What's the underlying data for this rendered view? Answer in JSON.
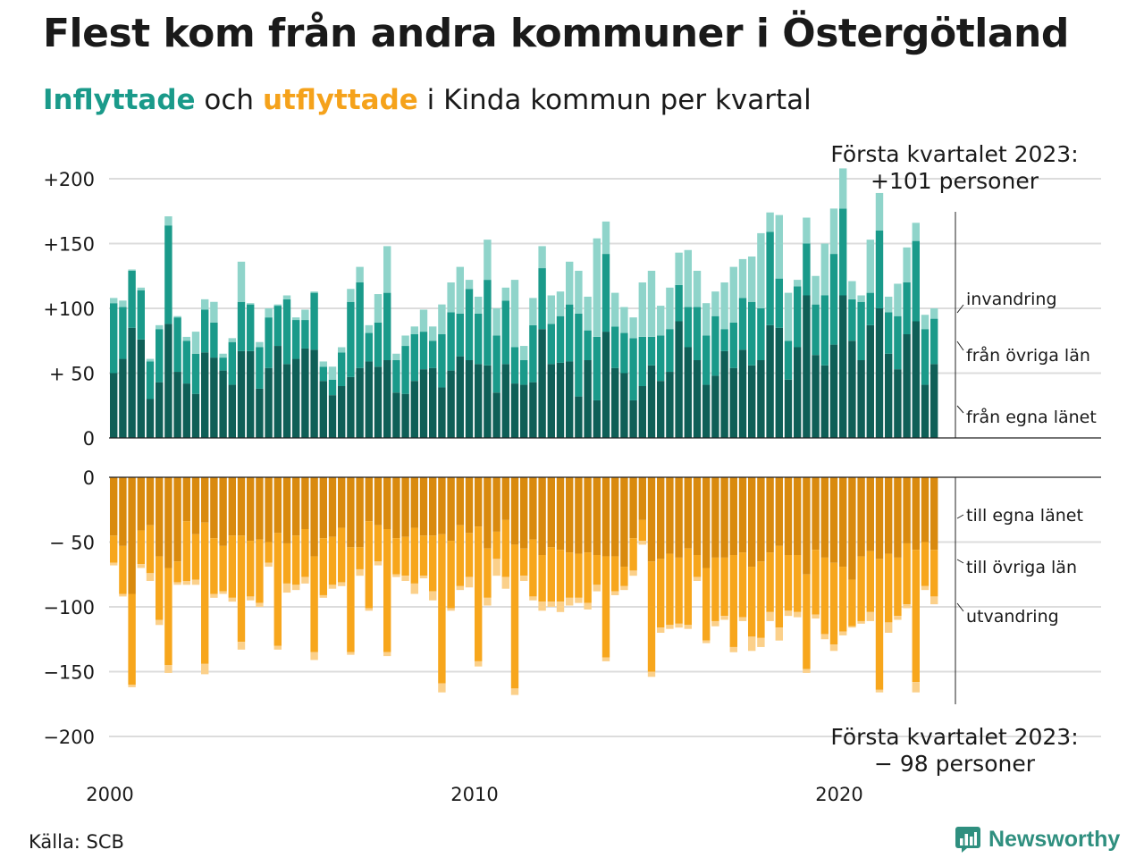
{
  "title": "Flest kom från andra kommuner i Östergötland",
  "subtitle": {
    "part1": "Inflyttade",
    "part2": " och ",
    "part3": "utflyttade",
    "part4": " i Kinda kommun per kvartal"
  },
  "annotation_top": [
    "Första kvartalet 2023:",
    "+101 personer"
  ],
  "annotation_bottom": [
    "Första kvartalet 2023:",
    "− 98 personer"
  ],
  "source": "Källa: SCB",
  "brand": "Newsworthy",
  "colors": {
    "egna_in": "#0f5f57",
    "ovriga_in": "#1a9a8a",
    "invandring": "#8fd4ca",
    "egna_out": "#d98a0e",
    "ovriga_out": "#f7a61c",
    "utvandring": "#fbd08a",
    "subtitle_in": "#1a9a8a",
    "subtitle_out": "#f5a21b"
  },
  "chart_data": {
    "type": "bar",
    "stacked": true,
    "x_start": "2000 Q1",
    "x_end": "2023 Q1",
    "xticks": [
      "2000",
      "2010",
      "2020"
    ],
    "top_panel": {
      "yticks": [
        {
          "value": 0,
          "label": "0"
        },
        {
          "value": 50,
          "label": "+ 50"
        },
        {
          "value": 100,
          "label": "+100"
        },
        {
          "value": 150,
          "label": "+150"
        },
        {
          "value": 200,
          "label": "+200"
        }
      ],
      "ylim": [
        0,
        200
      ],
      "series": [
        {
          "name": "från egna länet",
          "values": [
            50,
            61,
            85,
            76,
            30,
            43,
            88,
            51,
            42,
            34,
            66,
            62,
            52,
            41,
            67,
            67,
            38,
            54,
            71,
            57,
            61,
            69,
            68,
            44,
            33,
            40,
            47,
            54,
            59,
            55,
            60,
            35,
            34,
            44,
            53,
            54,
            39,
            52,
            63,
            60,
            57,
            56,
            35,
            57,
            42,
            41,
            43,
            84,
            57,
            58,
            59,
            32,
            60,
            29,
            82,
            54,
            50,
            29,
            40,
            56,
            44,
            51,
            90,
            70,
            60,
            41,
            48,
            67,
            54,
            68,
            56,
            60,
            87,
            85,
            45,
            70,
            110,
            64,
            56,
            72,
            110,
            75,
            60,
            87,
            100,
            65,
            53,
            80,
            90,
            41,
            57
          ]
        },
        {
          "name": "från övriga län",
          "values": [
            54,
            40,
            44,
            38,
            29,
            41,
            76,
            42,
            33,
            31,
            33,
            27,
            10,
            33,
            38,
            36,
            32,
            39,
            31,
            50,
            30,
            22,
            44,
            11,
            12,
            26,
            58,
            66,
            22,
            34,
            52,
            25,
            37,
            36,
            29,
            21,
            41,
            45,
            33,
            55,
            39,
            66,
            44,
            49,
            28,
            19,
            44,
            47,
            31,
            36,
            44,
            64,
            23,
            49,
            60,
            32,
            31,
            48,
            38,
            22,
            35,
            33,
            28,
            31,
            41,
            38,
            46,
            17,
            35,
            40,
            49,
            40,
            72,
            38,
            30,
            47,
            40,
            39,
            54,
            70,
            67,
            32,
            45,
            25,
            60,
            32,
            41,
            40,
            62,
            43,
            35
          ]
        },
        {
          "name": "invandring",
          "values": [
            4,
            5,
            1,
            2,
            2,
            3,
            7,
            1,
            3,
            17,
            8,
            16,
            3,
            3,
            31,
            1,
            4,
            7,
            1,
            3,
            2,
            8,
            1,
            4,
            10,
            4,
            10,
            12,
            6,
            22,
            36,
            5,
            8,
            6,
            17,
            11,
            23,
            23,
            36,
            7,
            13,
            31,
            21,
            10,
            52,
            11,
            21,
            17,
            22,
            19,
            33,
            33,
            26,
            76,
            25,
            26,
            20,
            16,
            42,
            51,
            23,
            32,
            25,
            44,
            28,
            25,
            19,
            36,
            43,
            30,
            35,
            58,
            15,
            49,
            37,
            5,
            20,
            22,
            40,
            35,
            31,
            14,
            5,
            41,
            29,
            12,
            25,
            27,
            14,
            11,
            8
          ]
        }
      ]
    },
    "bottom_panel": {
      "yticks": [
        {
          "value": 0,
          "label": "0"
        },
        {
          "value": -50,
          "label": "− 50"
        },
        {
          "value": -100,
          "label": "−100"
        },
        {
          "value": -150,
          "label": "−150"
        },
        {
          "value": -200,
          "label": "−200"
        }
      ],
      "ylim": [
        -200,
        0
      ],
      "series": [
        {
          "name": "till egna länet",
          "values": [
            -45,
            -53,
            -90,
            -41,
            -37,
            -61,
            -70,
            -65,
            -34,
            -44,
            -35,
            -47,
            -53,
            -45,
            -45,
            -49,
            -48,
            -50,
            -43,
            -51,
            -45,
            -40,
            -61,
            -47,
            -46,
            -39,
            -54,
            -54,
            -34,
            -37,
            -40,
            -47,
            -46,
            -39,
            -45,
            -45,
            -44,
            -49,
            -37,
            -43,
            -38,
            -55,
            -42,
            -33,
            -52,
            -55,
            -48,
            -60,
            -54,
            -56,
            -58,
            -59,
            -58,
            -60,
            -61,
            -61,
            -69,
            -47,
            -33,
            -65,
            -63,
            -59,
            -62,
            -55,
            -60,
            -70,
            -62,
            -62,
            -60,
            -58,
            -69,
            -65,
            -58,
            -53,
            -60,
            -60,
            -75,
            -56,
            -62,
            -66,
            -69,
            -79,
            -61,
            -57,
            -63,
            -59,
            -62,
            -51,
            -56,
            -50,
            -56
          ]
        },
        {
          "name": "till övriga län",
          "values": [
            -21,
            -37,
            -70,
            -26,
            -37,
            -49,
            -75,
            -16,
            -46,
            -35,
            -109,
            -43,
            -35,
            -48,
            -82,
            -43,
            -49,
            -16,
            -87,
            -31,
            -38,
            -37,
            -74,
            -44,
            -37,
            -42,
            -81,
            -17,
            -67,
            -28,
            -95,
            -28,
            -30,
            -43,
            -31,
            -43,
            -115,
            -52,
            -47,
            -34,
            -104,
            -38,
            -21,
            -44,
            -111,
            -21,
            -44,
            -36,
            -42,
            -40,
            -35,
            -34,
            -39,
            -23,
            -78,
            -27,
            -15,
            -25,
            -16,
            -85,
            -53,
            -55,
            -51,
            -59,
            -17,
            -56,
            -49,
            -45,
            -71,
            -50,
            -54,
            -59,
            -46,
            -63,
            -43,
            -44,
            -73,
            -50,
            -59,
            -63,
            -50,
            -36,
            -50,
            -47,
            -101,
            -53,
            -45,
            -47,
            -102,
            -34,
            -36
          ]
        },
        {
          "name": "utvandring",
          "values": [
            -2,
            -2,
            -2,
            -3,
            -6,
            -4,
            -6,
            -2,
            -3,
            -4,
            -8,
            -3,
            -2,
            -3,
            -6,
            -3,
            -3,
            -3,
            -3,
            -7,
            -4,
            -5,
            -6,
            -2,
            -3,
            -3,
            -2,
            -5,
            -2,
            -3,
            -3,
            -2,
            -4,
            -8,
            -2,
            -7,
            -7,
            -2,
            -3,
            -8,
            -4,
            -6,
            -13,
            -9,
            -5,
            -4,
            -3,
            -7,
            -4,
            -8,
            -6,
            -4,
            -5,
            -5,
            -3,
            -3,
            -3,
            -4,
            -3,
            -4,
            -4,
            -3,
            -3,
            -3,
            -3,
            -2,
            -4,
            -3,
            -4,
            -3,
            -11,
            -7,
            -7,
            -10,
            -4,
            -4,
            -3,
            -3,
            -4,
            -5,
            -3,
            -1,
            -2,
            -7,
            -2,
            -8,
            -3,
            -3,
            -8,
            -3,
            -6
          ]
        }
      ]
    },
    "series_labels_top": [
      "invandring",
      "från övriga län",
      "från egna länet"
    ],
    "series_labels_bottom": [
      "till egna länet",
      "till övriga län",
      "utvandring"
    ]
  }
}
